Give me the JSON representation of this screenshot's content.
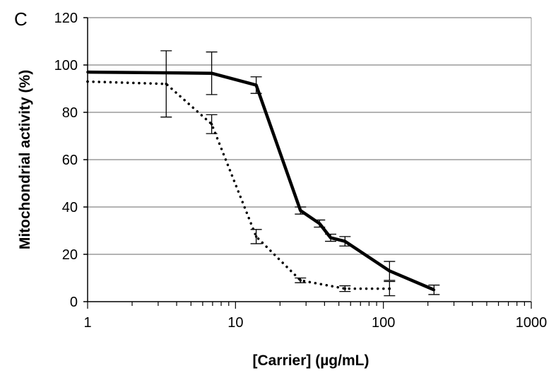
{
  "panel_label": "C",
  "chart_data": {
    "type": "line",
    "xscale": "log",
    "xlim": [
      1,
      1000
    ],
    "ylim": [
      0,
      120
    ],
    "xticks": [
      1,
      10,
      100,
      1000
    ],
    "xtick_labels": [
      "1",
      "10",
      "100",
      "1000"
    ],
    "yticks": [
      0,
      20,
      40,
      60,
      80,
      100,
      120
    ],
    "ytick_labels": [
      "0",
      "20",
      "40",
      "60",
      "80",
      "100",
      "120"
    ],
    "xlabel": "[Carrier] (µg/mL)",
    "ylabel": "Mitochondrial activity (%)",
    "grid": "horizontal",
    "legend": false,
    "series": [
      {
        "style": "solid",
        "color": "#000000",
        "x": [
          1,
          6.9,
          13.8,
          27.5,
          37,
          44,
          55,
          110,
          220
        ],
        "y": [
          97,
          96.5,
          91.5,
          38.5,
          33,
          27,
          25.5,
          13,
          5
        ],
        "err": [
          null,
          9,
          3.5,
          1.5,
          1.5,
          1.5,
          2,
          4,
          2
        ]
      },
      {
        "style": "dotted",
        "color": "#000000",
        "x": [
          1,
          3.4,
          6.9,
          13.8,
          27.5,
          55,
          110
        ],
        "y": [
          93,
          92,
          75,
          27.5,
          9,
          5.5,
          5.5
        ],
        "err": [
          null,
          14,
          4,
          3,
          1,
          1.2,
          3
        ]
      }
    ]
  }
}
